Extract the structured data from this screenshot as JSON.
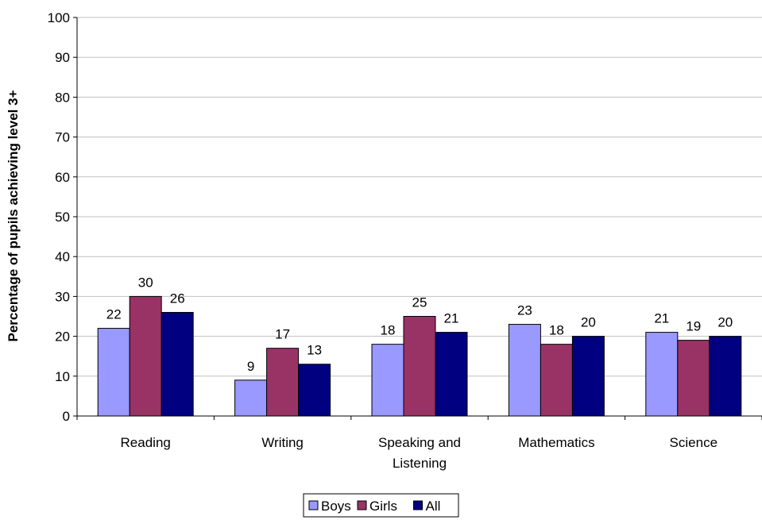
{
  "chart_data": {
    "type": "bar",
    "categories": [
      "Reading",
      "Writing",
      "Speaking and Listening",
      "Mathematics",
      "Science"
    ],
    "category_lines": [
      [
        "Reading"
      ],
      [
        "Writing"
      ],
      [
        "Speaking and",
        "Listening"
      ],
      [
        "Mathematics"
      ],
      [
        "Science"
      ]
    ],
    "series": [
      {
        "name": "Boys",
        "color": "#9999ff",
        "values": [
          22,
          9,
          18,
          23,
          21
        ]
      },
      {
        "name": "Girls",
        "color": "#993366",
        "values": [
          30,
          17,
          25,
          18,
          19
        ]
      },
      {
        "name": "All",
        "color": "#000080",
        "values": [
          26,
          13,
          21,
          20,
          20
        ]
      }
    ],
    "title": "",
    "xlabel": "",
    "ylabel": "Percentage of pupils achieving level 3+",
    "ylim": [
      0,
      100
    ],
    "yticks": [
      0,
      10,
      20,
      30,
      40,
      50,
      60,
      70,
      80,
      90,
      100
    ],
    "grid": true,
    "legend_position": "bottom-center",
    "data_labels": true,
    "gridline_color": "#c0c0c0"
  }
}
